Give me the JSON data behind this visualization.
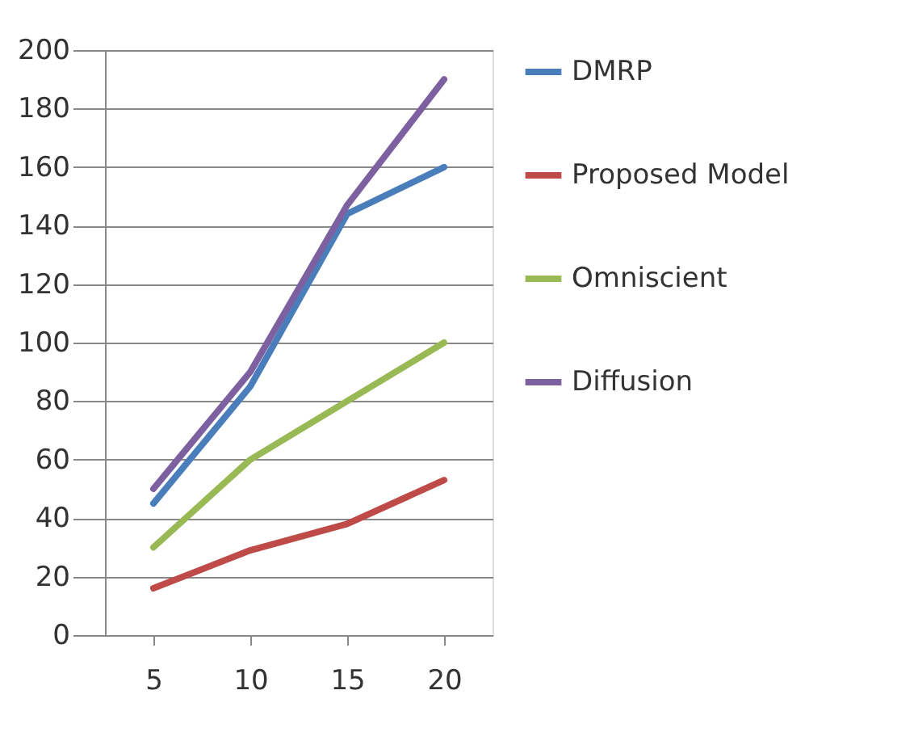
{
  "chart_data": {
    "type": "line",
    "categories": [
      "5",
      "10",
      "15",
      "20"
    ],
    "series": [
      {
        "name": "DMRP",
        "color": "#4a7ebb",
        "values": [
          45,
          85,
          144,
          160
        ]
      },
      {
        "name": "Proposed Model",
        "color": "#be4b48",
        "values": [
          16,
          29,
          38,
          53
        ]
      },
      {
        "name": "Omniscient",
        "color": "#98b954",
        "values": [
          30,
          60,
          80,
          100
        ]
      },
      {
        "name": "Diffusion",
        "color": "#7d60a0",
        "values": [
          50,
          90,
          147,
          190
        ]
      }
    ],
    "ylim": [
      0,
      200
    ],
    "yticks": [
      0,
      20,
      40,
      60,
      80,
      100,
      120,
      140,
      160,
      180,
      200
    ],
    "grid": "y",
    "legend": "right",
    "marker": "none",
    "line_style": "solid"
  }
}
